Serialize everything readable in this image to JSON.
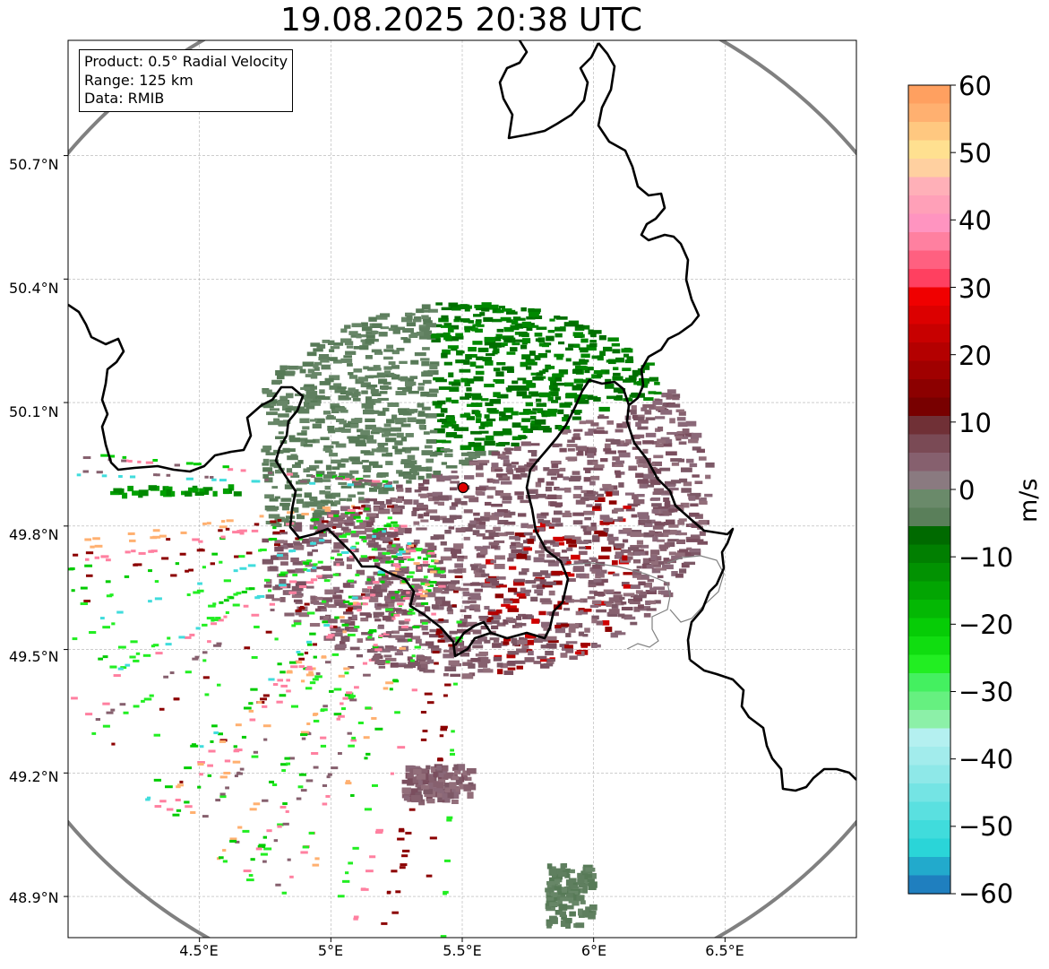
{
  "title": "19.08.2025 20:38 UTC",
  "info_box": {
    "product": "Product: 0.5° Radial Velocity",
    "range": "Range: 125 km",
    "data": "Data: RMIB"
  },
  "map": {
    "extent": {
      "lon_min": 4.0,
      "lon_max": 7.0,
      "lat_min": 48.8,
      "lat_max": 50.98
    },
    "radar_site": {
      "lon": 5.505,
      "lat": 49.915
    },
    "lat_ticks": [
      "50.7°N",
      "50.4°N",
      "50.1°N",
      "49.8°N",
      "49.5°N",
      "49.2°N",
      "48.9°N"
    ],
    "lon_ticks": [
      "4.5°E",
      "5°E",
      "5.5°E",
      "6°E",
      "6.5°E"
    ],
    "range_ring_color": "#808080",
    "border_color": "#000000",
    "admin_border_color": "#808080"
  },
  "colorbar": {
    "label": "m/s",
    "ticks": [
      "60",
      "50",
      "40",
      "30",
      "20",
      "10",
      "0",
      "−10",
      "−20",
      "−30",
      "−40",
      "−50",
      "−60"
    ],
    "range": [
      -60,
      60
    ],
    "colors": [
      "#1f7fbf",
      "#22aacc",
      "#2ad5d8",
      "#40dcdc",
      "#5ae0e0",
      "#74e4e4",
      "#8ee8e8",
      "#a2ecec",
      "#b4f0f0",
      "#8cf0a8",
      "#66f080",
      "#44f060",
      "#22ee22",
      "#10dd10",
      "#06cc06",
      "#04b804",
      "#02a502",
      "#029202",
      "#017f01",
      "#006a00",
      "#5a7f5a",
      "#6a8a6a",
      "#8a7a80",
      "#86606e",
      "#7a4a55",
      "#703036",
      "#780000",
      "#8c0000",
      "#a00000",
      "#b40000",
      "#c80000",
      "#dc0000",
      "#f00000",
      "#ff4060",
      "#ff6080",
      "#ff80a0",
      "#ff94c0",
      "#ffa0b8",
      "#ffb0b8",
      "#ffd0a0",
      "#ffe090",
      "#ffc880",
      "#ffb070",
      "#ffa060"
    ]
  }
}
